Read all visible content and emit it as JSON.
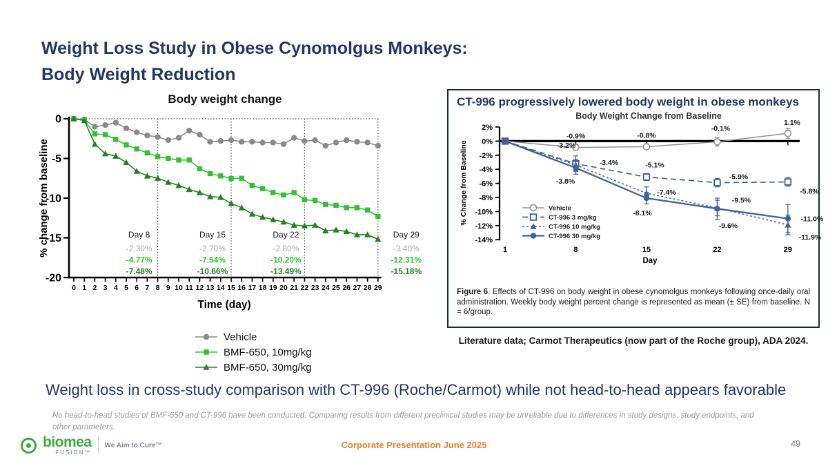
{
  "slide": {
    "title_line1": "Weight Loss Study in Obese Cynomolgus Monkeys:",
    "title_line2": "Body Weight Reduction",
    "statement": "Weight loss in cross-study comparison with CT-996 (Roche/Carmot) while not head-to-head appears favorable",
    "footnote": "No head-to-head studies of BMF-650 and CT-996 have been conducted. Comparing results from different preclinical studies may be unreliable due to differences in study designs, study endpoints, and other parameters.",
    "literature_credit": "Literature data; Carmot Therapeutics (now part of the Roche group), ADA 2024.",
    "footer": {
      "logo_text": "biomea",
      "logo_sub": "FUSION™",
      "tagline": "We Aim to Cure™",
      "center_text": "Corporate Presentation June 2025",
      "page_number": "49"
    }
  },
  "right_panel": {
    "title": "CT-996 progressively lowered body weight in obese monkeys",
    "caption_bold": "Figure 6",
    "caption_rest": ". Effects of CT-996 on body weight in obese cynomolgus monkeys following once-daily oral administration. Weekly body weight percent change is represented as mean (± SE) from baseline. N = 6/group."
  },
  "colors": {
    "title_navy": "#1F3864",
    "accent_orange": "#EE7E23",
    "bright_green": "#2FC32F",
    "dark_green": "#1E851E",
    "vehicle_gray": "#8A8A8A",
    "ct996_blue": "#3C6596",
    "logo_green": "#3FA93F"
  },
  "chart_data": [
    {
      "type": "line",
      "title": "Body weight change",
      "xlabel": "Time (day)",
      "ylabel": "% change from baseline",
      "xlim": [
        0,
        29
      ],
      "ylim": [
        -20,
        0
      ],
      "grid": false,
      "legend_position": "below",
      "xticks": [
        0,
        1,
        2,
        3,
        4,
        5,
        6,
        7,
        8,
        9,
        10,
        11,
        12,
        13,
        14,
        15,
        16,
        17,
        18,
        19,
        20,
        21,
        22,
        23,
        24,
        25,
        26,
        27,
        28,
        29
      ],
      "yticks": [
        0,
        -5,
        -10,
        -15,
        -20
      ],
      "vlines_dotted": [
        8,
        15,
        22,
        29
      ],
      "hline_dotted": 0,
      "x": [
        0,
        1,
        2,
        3,
        4,
        5,
        6,
        7,
        8,
        9,
        10,
        11,
        12,
        13,
        14,
        15,
        16,
        17,
        18,
        19,
        20,
        21,
        22,
        23,
        24,
        25,
        26,
        27,
        28,
        29
      ],
      "series": [
        {
          "name": "Vehicle",
          "color": "#8A8A8A",
          "marker": "circle",
          "values": [
            0,
            -0.1,
            -1,
            -0.8,
            -0.5,
            -1.2,
            -1.7,
            -2.1,
            -2.3,
            -2.7,
            -2.4,
            -1.5,
            -2,
            -2.9,
            -2.8,
            -2.7,
            -2.9,
            -2.9,
            -3,
            -3,
            -3.2,
            -2.4,
            -2.8,
            -2.7,
            -3.4,
            -3,
            -2.7,
            -2.9,
            -3,
            -3.4
          ]
        },
        {
          "name": "BMF-650, 10mg/kg",
          "color": "#2FC32F",
          "marker": "square",
          "values": [
            0,
            -0.2,
            -1.9,
            -2,
            -2.6,
            -3.3,
            -3.8,
            -4.3,
            -4.77,
            -5,
            -5.2,
            -5.2,
            -6.3,
            -6.9,
            -7.2,
            -7.54,
            -7.5,
            -8.4,
            -8.8,
            -9.3,
            -9.6,
            -9.3,
            -10.2,
            -10.3,
            -10.8,
            -10.9,
            -11.2,
            -11.2,
            -11.5,
            -12.31
          ]
        },
        {
          "name": "BMF-650, 30mg/kg",
          "color": "#1E851E",
          "marker": "triangle",
          "values": [
            0,
            -0.2,
            -3.2,
            -4.4,
            -4.7,
            -5.5,
            -6.6,
            -7.2,
            -7.48,
            -8,
            -8.4,
            -8.9,
            -9.3,
            -9.8,
            -9.9,
            -10.66,
            -11.2,
            -12,
            -12.4,
            -12.7,
            -13,
            -13.4,
            -13.49,
            -13.4,
            -14.1,
            -14,
            -14.2,
            -14.6,
            -14.6,
            -15.18
          ]
        }
      ],
      "annotation_colors": [
        "#A8A8A8",
        "#2FC32F",
        "#1E851E"
      ],
      "annotations": [
        {
          "day_label": "Day 8",
          "x": 8,
          "values": [
            "-2.30%",
            "-4.77%",
            "-7.48%"
          ]
        },
        {
          "day_label": "Day 15",
          "x": 15,
          "values": [
            "-2.70%",
            "-7.54%",
            "-10.66%"
          ]
        },
        {
          "day_label": "Day 22",
          "x": 22,
          "values": [
            "-2.80%",
            "-10.20%",
            "-13.49%"
          ]
        },
        {
          "day_label": "Day 29",
          "x": 29,
          "values": [
            "-3.40%",
            "-12.31%",
            "-15.18%"
          ]
        }
      ]
    },
    {
      "type": "line",
      "title": "Body Weight Change from Baseline",
      "xlabel": "Day",
      "ylabel": "% Change from Baseline",
      "xlim": [
        1,
        29
      ],
      "ylim": [
        -14,
        2
      ],
      "grid": false,
      "legend_position": "inside-lower-left",
      "x": [
        1,
        8,
        15,
        22,
        29
      ],
      "xticks": [
        1,
        8,
        15,
        22,
        29
      ],
      "ytick_values": [
        2,
        0,
        -2,
        -4,
        -6,
        -8,
        -10,
        -12,
        -14
      ],
      "ytick_labels": [
        "2%",
        "0%",
        "-2%",
        "-4%",
        "-6%",
        "-8%",
        "-10%",
        "-12%",
        "-14%"
      ],
      "zero_line_bold": true,
      "series": [
        {
          "name": "Vehicle",
          "color": "#909090",
          "line": "solid",
          "width": 1.5,
          "marker": "circle-open",
          "values": [
            0,
            -0.9,
            -0.8,
            -0.1,
            1.1
          ],
          "err": [
            0,
            0.4,
            0.35,
            0.6,
            0.7
          ],
          "labels": [
            "",
            "-0.9%",
            "-0.8%",
            "-0.1%",
            "1.1%"
          ],
          "label_offsets": [
            [
              0,
              0
            ],
            [
              0,
              -13
            ],
            [
              0,
              -13
            ],
            [
              5,
              -16
            ],
            [
              6,
              -12
            ]
          ]
        },
        {
          "name": "CT-996 3 mg/kg",
          "color": "#3C6596",
          "line": "dash",
          "width": 1.7,
          "marker": "square-open",
          "values": [
            0,
            -3.2,
            -5.1,
            -5.9,
            -5.8
          ],
          "err": [
            0,
            1.1,
            0.5,
            0.6,
            0.6
          ],
          "labels": [
            "",
            "-3.2%",
            "-5.1%",
            "-5.9%",
            "-5.8%"
          ],
          "label_offsets": [
            [
              0,
              0
            ],
            [
              -14,
              -23
            ],
            [
              12,
              -14
            ],
            [
              31,
              -5
            ],
            [
              31,
              17
            ]
          ]
        },
        {
          "name": "CT-996 10 mg/kg",
          "color": "#3C6596",
          "line": "dash-short",
          "width": 1.5,
          "marker": "triangle",
          "values": [
            0,
            -3.4,
            -7.4,
            -9.5,
            -11.9
          ],
          "err": [
            0,
            0.8,
            0.9,
            1.1,
            1.4
          ],
          "labels": [
            "",
            "-3.4%",
            "-7.4%",
            "-9.5%",
            "-11.9%"
          ],
          "label_offsets": [
            [
              0,
              0
            ],
            [
              48,
              0
            ],
            [
              29,
              2
            ],
            [
              35,
              -8
            ],
            [
              32,
              21
            ]
          ]
        },
        {
          "name": "CT-996 30 mg/kg",
          "color": "#3C6596",
          "line": "solid",
          "width": 2.3,
          "marker": "circle",
          "values": [
            0,
            -3.8,
            -8.1,
            -9.6,
            -11
          ],
          "err": [
            0,
            0.9,
            0.8,
            1.5,
            2
          ],
          "labels": [
            "",
            "-3.8%",
            "-8.1%",
            "-9.6%",
            "-11.0%"
          ],
          "label_offsets": [
            [
              0,
              0
            ],
            [
              -15,
              23
            ],
            [
              -6,
              25
            ],
            [
              16,
              28
            ],
            [
              35,
              4
            ]
          ]
        }
      ]
    }
  ]
}
